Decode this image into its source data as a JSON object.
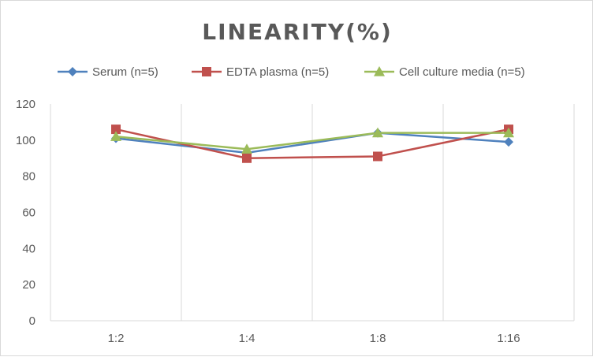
{
  "chart_data": {
    "type": "line",
    "title": "LINEARITY(%)",
    "categories": [
      "1:2",
      "1:4",
      "1:8",
      "1:16"
    ],
    "ylim": [
      0,
      120
    ],
    "yticks": [
      0,
      20,
      40,
      60,
      80,
      100,
      120
    ],
    "grid": "vertical category lines",
    "legend_position": "top",
    "series": [
      {
        "name": "Serum (n=5)",
        "color": "#4f81bd",
        "marker": "diamond",
        "values": [
          101,
          93,
          104,
          99
        ]
      },
      {
        "name": "EDTA plasma (n=5)",
        "color": "#c0504d",
        "marker": "square",
        "values": [
          106,
          90,
          91,
          106
        ]
      },
      {
        "name": "Cell culture media (n=5)",
        "color": "#9bbb59",
        "marker": "triangle",
        "values": [
          102,
          95,
          104,
          104
        ]
      }
    ]
  }
}
